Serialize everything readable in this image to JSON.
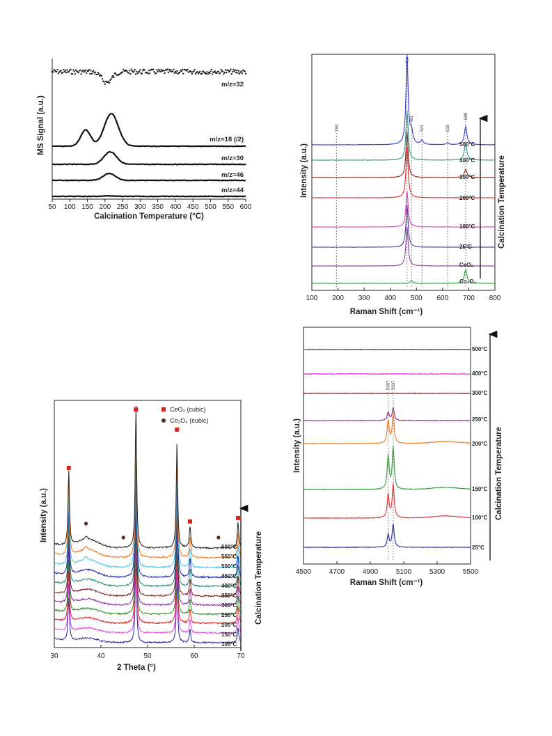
{
  "chart_data": [
    {
      "type": "line",
      "xlabel": "Calcination Temperature (°C)",
      "ylabel": "MS Signal (a.u.)",
      "xlim": [
        50,
        600
      ],
      "xticks": [
        "50",
        "100",
        "150",
        "200",
        "250",
        "300",
        "350",
        "400",
        "450",
        "500",
        "550",
        "600"
      ],
      "series": [
        {
          "name": "m/z=32",
          "shape": "dip",
          "baseline": 0.86,
          "features": [
            {
              "center": 205,
              "width": 15,
              "amp": -0.07
            }
          ]
        },
        {
          "name": "m/z=18 (/2)",
          "shape": "peaks",
          "baseline": 0.0,
          "features": [
            {
              "center": 145,
              "width": 14,
              "amp": 0.18
            },
            {
              "center": 218,
              "width": 20,
              "amp": 0.36
            }
          ]
        },
        {
          "name": "m/z=30",
          "shape": "peaks",
          "baseline": 0.0,
          "features": [
            {
              "center": 215,
              "width": 18,
              "amp": 0.18
            }
          ]
        },
        {
          "name": "m/z=46",
          "shape": "peaks",
          "baseline": 0.0,
          "features": [
            {
              "center": 212,
              "width": 17,
              "amp": 0.09
            }
          ]
        },
        {
          "name": "m/z=44",
          "shape": "peaks",
          "baseline": 0.0,
          "features": [
            {
              "center": 210,
              "width": 15,
              "amp": 0.008
            }
          ]
        }
      ]
    },
    {
      "type": "line",
      "xlabel": "Raman Shift (cm⁻¹)",
      "ylabel": "Intensity (a.u.)",
      "side_label": "Calcination Temperature",
      "xlim": [
        100,
        800
      ],
      "xticks": [
        "100",
        "200",
        "300",
        "400",
        "500",
        "600",
        "700",
        "800"
      ],
      "peak_markers": [
        {
          "label": "194",
          "x": 194
        },
        {
          "label": "464",
          "x": 464
        },
        {
          "label": "481",
          "x": 481
        },
        {
          "label": "521",
          "x": 521
        },
        {
          "label": "619",
          "x": 619
        },
        {
          "label": "688",
          "x": 688
        }
      ],
      "series": [
        {
          "name": "Co₃O₄",
          "color": "#2e9e3a",
          "peaks": [
            [
              481,
              0.1
            ],
            [
              688,
              0.5
            ]
          ]
        },
        {
          "name": "CeO₂",
          "color": "#8a3ea8",
          "peaks": [
            [
              464,
              0.95
            ]
          ]
        },
        {
          "name": "25°C",
          "color": "#4a3a8a",
          "peaks": [
            [
              464,
              1.1
            ]
          ]
        },
        {
          "name": "100°C",
          "color": "#e040c0",
          "peaks": [
            [
              464,
              0.95
            ]
          ]
        },
        {
          "name": "200°C",
          "color": "#e03030",
          "peaks": [
            [
              464,
              1.2
            ]
          ]
        },
        {
          "name": "300°C",
          "color": "#8c2a2a",
          "peaks": [
            [
              464,
              1.1
            ],
            [
              688,
              0.2
            ]
          ]
        },
        {
          "name": "400°C",
          "color": "#2a9a8a",
          "peaks": [
            [
              464,
              1.2
            ],
            [
              688,
              0.4
            ]
          ]
        },
        {
          "name": "500°C",
          "color": "#3a3ad0",
          "peaks": [
            [
              464,
              2.2
            ],
            [
              481,
              0.3
            ],
            [
              521,
              0.1
            ],
            [
              619,
              0.05
            ],
            [
              688,
              0.45
            ]
          ]
        }
      ]
    },
    {
      "type": "line",
      "xlabel": "2 Theta (°)",
      "ylabel": "Intensity (a.u.)",
      "side_label": "Calcination Temperature",
      "xlim": [
        30,
        70
      ],
      "xticks": [
        "30",
        "40",
        "50",
        "60",
        "70"
      ],
      "legend": [
        {
          "label": "CeO₂ (cubic)",
          "marker": "square",
          "color": "#e02020"
        },
        {
          "label": "Co₃O₄ (cubic)",
          "marker": "circle",
          "color": "#5a2a1a"
        }
      ],
      "ceo2_peaks": [
        33.1,
        47.5,
        56.3,
        59.1,
        69.4
      ],
      "co3o4_peaks": [
        36.8,
        44.8,
        65.2
      ],
      "series": [
        {
          "name": "100°C",
          "color": "#2a2a9a"
        },
        {
          "name": "150°C",
          "color": "#e040e0"
        },
        {
          "name": "200°C",
          "color": "#e02020"
        },
        {
          "name": "250°C",
          "color": "#2a8a2a"
        },
        {
          "name": "300°C",
          "color": "#8a2aa0"
        },
        {
          "name": "350°C",
          "color": "#7a1a1a"
        },
        {
          "name": "400°C",
          "color": "#1a8a7a"
        },
        {
          "name": "450°C",
          "color": "#1a2ab0"
        },
        {
          "name": "500°C",
          "color": "#40c8e8"
        },
        {
          "name": "550°C",
          "color": "#f07820"
        },
        {
          "name": "600°C",
          "color": "#222222"
        }
      ]
    },
    {
      "type": "line",
      "xlabel": "Raman Shift (cm⁻¹)",
      "ylabel": "Intensity (a.u.)",
      "side_label": "Calcination Temperature",
      "xlim": [
        4500,
        5500
      ],
      "xticks": [
        "4500",
        "4700",
        "4900",
        "5100",
        "5300",
        "5500"
      ],
      "peak_markers": [
        {
          "label": "5007",
          "x": 5007
        },
        {
          "label": "5037",
          "x": 5037
        }
      ],
      "series": [
        {
          "name": "25°C",
          "color": "#2a2a9a",
          "peaks": [
            [
              5007,
              0.3
            ],
            [
              5037,
              0.55
            ]
          ]
        },
        {
          "name": "100°C",
          "color": "#e03030",
          "peaks": [
            [
              5007,
              0.55
            ],
            [
              5037,
              0.8
            ]
          ]
        },
        {
          "name": "150°C",
          "color": "#2a9a3a",
          "peaks": [
            [
              5007,
              0.8
            ],
            [
              5037,
              1.0
            ]
          ]
        },
        {
          "name": "200°C",
          "color": "#f07a20",
          "peaks": [
            [
              5007,
              0.55
            ],
            [
              5037,
              0.7
            ]
          ]
        },
        {
          "name": "250°C",
          "color": "#8a2a8a",
          "peaks": [
            [
              5007,
              0.2
            ],
            [
              5037,
              0.3
            ]
          ]
        },
        {
          "name": "300°C",
          "color": "#7a1a1a",
          "peaks": []
        },
        {
          "name": "400°C",
          "color": "#e020e0",
          "peaks": []
        },
        {
          "name": "500°C",
          "color": "#333333",
          "peaks": []
        }
      ]
    }
  ]
}
